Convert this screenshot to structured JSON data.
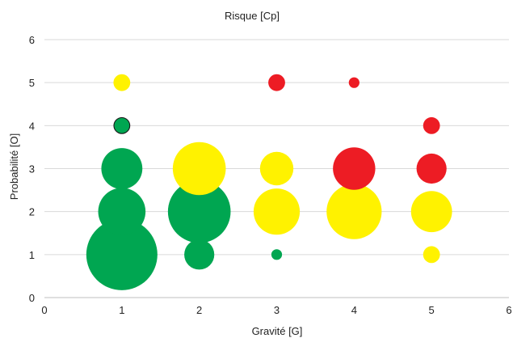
{
  "chart_data": {
    "type": "scatter",
    "variant": "bubble",
    "title": "Risque [Cp]",
    "xlabel": "Gravité [G]",
    "ylabel": "Probabilité [O]",
    "xlim": [
      0,
      6
    ],
    "ylim": [
      0,
      6
    ],
    "xticks": [
      0,
      1,
      2,
      3,
      4,
      5,
      6
    ],
    "yticks": [
      0,
      1,
      2,
      3,
      4,
      5,
      6
    ],
    "grid": "horizontal",
    "legend": "none",
    "colors": {
      "green": "#00a651",
      "yellow": "#fff200",
      "red": "#ed1c24"
    },
    "points": [
      {
        "x": 1,
        "y": 1,
        "size": 9,
        "color": "#00a651"
      },
      {
        "x": 1,
        "y": 2,
        "size": 4,
        "color": "#00a651"
      },
      {
        "x": 1,
        "y": 3,
        "size": 3,
        "color": "#00a651"
      },
      {
        "x": 1,
        "y": 4,
        "size": 0.5,
        "color": "#1a1a1a"
      },
      {
        "x": 1,
        "y": 4,
        "size": 0.4,
        "color": "#00a651"
      },
      {
        "x": 1,
        "y": 5,
        "size": 0.5,
        "color": "#fff200"
      },
      {
        "x": 2,
        "y": 1,
        "size": 1.6,
        "color": "#00a651"
      },
      {
        "x": 2,
        "y": 2,
        "size": 7,
        "color": "#00a651"
      },
      {
        "x": 2,
        "y": 3,
        "size": 5,
        "color": "#fff200"
      },
      {
        "x": 3,
        "y": 1,
        "size": 0.2,
        "color": "#00a651"
      },
      {
        "x": 3,
        "y": 2,
        "size": 3.8,
        "color": "#fff200"
      },
      {
        "x": 3,
        "y": 3,
        "size": 2,
        "color": "#fff200"
      },
      {
        "x": 3,
        "y": 5,
        "size": 0.5,
        "color": "#ed1c24"
      },
      {
        "x": 4,
        "y": 2,
        "size": 5.4,
        "color": "#fff200"
      },
      {
        "x": 4,
        "y": 3,
        "size": 3.2,
        "color": "#ed1c24"
      },
      {
        "x": 4,
        "y": 5,
        "size": 0.2,
        "color": "#ed1c24"
      },
      {
        "x": 5,
        "y": 1,
        "size": 0.5,
        "color": "#fff200"
      },
      {
        "x": 5,
        "y": 2,
        "size": 3,
        "color": "#fff200"
      },
      {
        "x": 5,
        "y": 3,
        "size": 1.6,
        "color": "#ed1c24"
      },
      {
        "x": 5,
        "y": 4,
        "size": 0.5,
        "color": "#ed1c24"
      }
    ]
  }
}
